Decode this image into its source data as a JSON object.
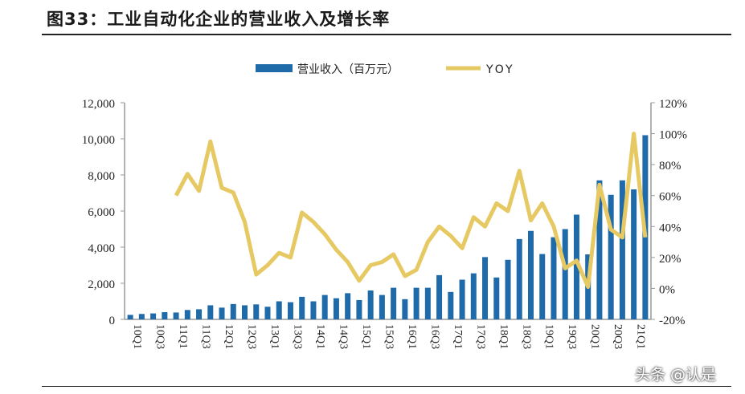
{
  "title": "图33：工业自动化企业的营业收入及增长率",
  "watermark": "头条 @认是",
  "chart_data": {
    "type": "bar+line",
    "legend_position": "top",
    "categories": [
      "10Q1",
      "10Q2",
      "10Q3",
      "10Q4",
      "11Q1",
      "11Q2",
      "11Q3",
      "11Q4",
      "12Q1",
      "12Q2",
      "12Q3",
      "12Q4",
      "13Q1",
      "13Q2",
      "13Q3",
      "13Q4",
      "14Q1",
      "14Q2",
      "14Q3",
      "14Q4",
      "15Q1",
      "15Q2",
      "15Q3",
      "15Q4",
      "16Q1",
      "16Q2",
      "16Q3",
      "16Q4",
      "17Q1",
      "17Q2",
      "17Q3",
      "17Q4",
      "18Q1",
      "18Q2",
      "18Q3",
      "18Q4",
      "19Q1",
      "19Q2",
      "19Q3",
      "19Q4",
      "20Q1",
      "20Q2",
      "20Q3",
      "20Q4",
      "21Q1",
      "21Q2"
    ],
    "tick_labels": [
      "10Q1",
      "10Q3",
      "11Q1",
      "11Q3",
      "12Q1",
      "12Q3",
      "13Q1",
      "13Q3",
      "14Q1",
      "14Q3",
      "15Q1",
      "15Q3",
      "16Q1",
      "16Q3",
      "17Q1",
      "17Q3",
      "18Q1",
      "18Q3",
      "19Q1",
      "19Q3",
      "20Q1",
      "20Q3",
      "21Q1"
    ],
    "series": [
      {
        "name": "营业收入（百万元）",
        "type": "bar",
        "axis": "left",
        "color": "#1f6aa8",
        "values": [
          250,
          300,
          330,
          400,
          380,
          520,
          560,
          780,
          650,
          850,
          780,
          830,
          700,
          1000,
          950,
          1250,
          1000,
          1350,
          1170,
          1450,
          1070,
          1600,
          1350,
          1750,
          1120,
          1750,
          1750,
          2450,
          1520,
          2200,
          2550,
          3450,
          2320,
          3300,
          4450,
          4900,
          3620,
          4550,
          5000,
          5800,
          3600,
          7700,
          6900,
          7700,
          7200,
          10200
        ]
      },
      {
        "name": "YOY",
        "type": "line",
        "axis": "right",
        "color": "#e6c962",
        "values": [
          null,
          null,
          null,
          null,
          60,
          74,
          63,
          95,
          65,
          62,
          43,
          9,
          15,
          23,
          20,
          49,
          43,
          35,
          25,
          17,
          5,
          15,
          17,
          22,
          8,
          12,
          30,
          40,
          34,
          26,
          46,
          40,
          55,
          50,
          76,
          44,
          55,
          40,
          13,
          18,
          1,
          67,
          38,
          33,
          100,
          33
        ]
      }
    ],
    "y_left": {
      "range": [
        0,
        12000
      ],
      "ticks": [
        "0",
        "2,000",
        "4,000",
        "6,000",
        "8,000",
        "10,000",
        "12,000"
      ]
    },
    "y_right": {
      "range": [
        -20,
        120
      ],
      "ticks": [
        "-20%",
        "0%",
        "20%",
        "40%",
        "60%",
        "80%",
        "100%",
        "120%"
      ]
    }
  }
}
